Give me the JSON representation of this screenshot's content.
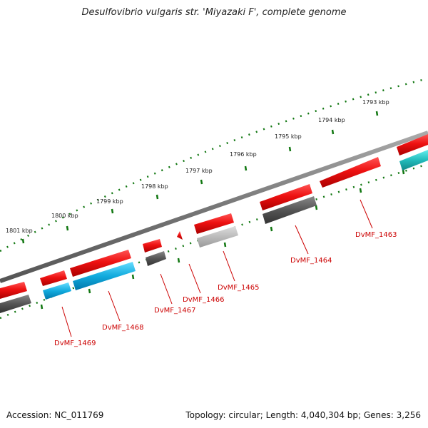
{
  "title": "Desulfovibrio vulgaris str. 'Miyazaki F', complete genome",
  "footer": {
    "accession": "Accession: NC_011769",
    "summary": "Topology: circular; Length: 4,040,304 bp; Genes: 3,256"
  },
  "colors": {
    "backbone": "#808080",
    "forward_cds": "#ee1111",
    "reverse_cds_dark": "#555555",
    "reverse_cds_light": "#bbbbbb",
    "reverse_cds_blue": "#11aadd",
    "reverse_cds_teal": "#22bbbb",
    "ticks": "#117711",
    "labels": "#cc0000"
  },
  "scale_labels": [
    "1801 kbp",
    "1800 kbp",
    "1799 kbp",
    "1798 kbp",
    "1797 kbp",
    "1796 kbp",
    "1795 kbp",
    "1794 kbp",
    "1793 kbp"
  ],
  "genes": [
    {
      "label": "DvMF_1469",
      "strand": "reverse",
      "color": "blue"
    },
    {
      "label": "DvMF_1468",
      "strand": "reverse",
      "color": "blue"
    },
    {
      "label": "DvMF_1467",
      "strand": "reverse",
      "color": "dark"
    },
    {
      "label": "DvMF_1466",
      "strand": "forward",
      "color": "red"
    },
    {
      "label": "DvMF_1465",
      "strand": "reverse",
      "color": "light"
    },
    {
      "label": "DvMF_1464",
      "strand": "reverse",
      "color": "dark"
    },
    {
      "label": "DvMF_1463",
      "strand": "forward",
      "color": "red"
    }
  ]
}
